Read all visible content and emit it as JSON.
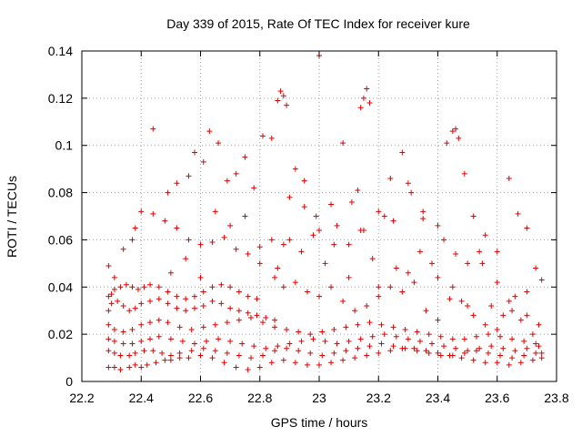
{
  "chart_data": {
    "type": "scatter",
    "title": "Day 339 of 2015, Rate Of TEC Index for receiver kure",
    "xlabel": "GPS time / hours",
    "ylabel": "ROTI / TECUs",
    "xlim": [
      22.2,
      23.8
    ],
    "ylim": [
      0,
      0.14
    ],
    "x_ticks": [
      22.2,
      22.4,
      22.6,
      22.8,
      23.0,
      23.2,
      23.4,
      23.6,
      23.8
    ],
    "x_tick_labels": [
      "22.2",
      "22.4",
      "22.6",
      "22.8",
      "23",
      "23.2",
      "23.4",
      "23.6",
      "23.8"
    ],
    "y_ticks": [
      0,
      0.02,
      0.04,
      0.06,
      0.08,
      0.1,
      0.12,
      0.14
    ],
    "y_tick_labels": [
      "0",
      "0.02",
      "0.04",
      "0.06",
      "0.08",
      "0.1",
      "0.12",
      "0.14"
    ],
    "grid": true,
    "marker": "plus",
    "color": "#e00000",
    "series": [
      {
        "x": [
          22.29,
          22.31,
          22.33,
          22.36,
          22.38,
          22.4,
          22.42,
          22.45,
          22.48,
          22.5,
          22.53,
          22.56,
          22.6,
          22.64,
          22.68,
          22.72,
          22.76,
          22.8,
          22.84,
          22.88,
          22.92,
          22.96,
          23.0,
          23.04,
          23.08,
          23.12,
          23.16,
          23.2,
          23.24,
          23.28,
          23.32,
          23.36,
          23.4,
          23.44,
          23.48,
          23.52,
          23.56,
          23.6,
          23.64,
          23.68,
          23.72,
          23.75
        ],
        "y": [
          0.006,
          0.006,
          0.005,
          0.006,
          0.007,
          0.006,
          0.007,
          0.008,
          0.009,
          0.009,
          0.01,
          0.01,
          0.011,
          0.01,
          0.008,
          0.006,
          0.005,
          0.006,
          0.008,
          0.009,
          0.008,
          0.007,
          0.007,
          0.008,
          0.009,
          0.01,
          0.011,
          0.012,
          0.013,
          0.014,
          0.014,
          0.013,
          0.012,
          0.011,
          0.01,
          0.009,
          0.008,
          0.008,
          0.007,
          0.008,
          0.009,
          0.01
        ]
      },
      {
        "x": [
          22.29,
          22.31,
          22.33,
          22.36,
          22.38,
          22.41,
          22.44,
          22.47,
          22.5,
          22.53,
          22.57,
          22.61,
          22.65,
          22.69,
          22.73,
          22.77,
          22.81,
          22.85,
          22.89,
          22.93,
          22.97,
          23.01,
          23.05,
          23.09,
          23.13,
          23.17,
          23.21,
          23.25,
          23.29,
          23.33,
          23.37,
          23.41,
          23.45,
          23.49,
          23.53,
          23.57,
          23.61,
          23.65,
          23.69,
          23.73,
          23.75
        ],
        "y": [
          0.013,
          0.012,
          0.011,
          0.011,
          0.012,
          0.013,
          0.013,
          0.012,
          0.011,
          0.012,
          0.013,
          0.014,
          0.013,
          0.012,
          0.011,
          0.01,
          0.011,
          0.013,
          0.014,
          0.013,
          0.012,
          0.011,
          0.012,
          0.013,
          0.014,
          0.015,
          0.016,
          0.015,
          0.014,
          0.013,
          0.012,
          0.011,
          0.011,
          0.012,
          0.013,
          0.012,
          0.011,
          0.01,
          0.011,
          0.012,
          0.012
        ]
      },
      {
        "x": [
          22.29,
          22.31,
          22.34,
          22.37,
          22.4,
          22.43,
          22.46,
          22.5,
          22.54,
          22.58,
          22.62,
          22.66,
          22.7,
          22.74,
          22.78,
          22.82,
          22.86,
          22.9,
          22.94,
          22.98,
          23.02,
          23.06,
          23.1,
          23.14,
          23.18,
          23.22,
          23.26,
          23.3,
          23.34,
          23.38,
          23.42,
          23.46,
          23.5,
          23.54,
          23.58,
          23.62,
          23.66,
          23.7,
          23.74
        ],
        "y": [
          0.018,
          0.017,
          0.016,
          0.016,
          0.017,
          0.018,
          0.019,
          0.018,
          0.017,
          0.016,
          0.017,
          0.018,
          0.017,
          0.016,
          0.015,
          0.014,
          0.015,
          0.016,
          0.017,
          0.018,
          0.017,
          0.016,
          0.017,
          0.018,
          0.019,
          0.02,
          0.019,
          0.018,
          0.017,
          0.016,
          0.015,
          0.014,
          0.013,
          0.014,
          0.015,
          0.014,
          0.013,
          0.014,
          0.015
        ]
      },
      {
        "x": [
          22.29,
          22.31,
          22.34,
          22.37,
          22.4,
          22.43,
          22.46,
          22.49,
          22.53,
          22.57,
          22.61,
          22.65,
          22.69,
          22.73,
          22.77,
          22.81,
          22.85,
          22.89,
          22.93,
          22.97,
          23.01,
          23.05,
          23.09,
          23.13,
          23.17,
          23.21,
          23.25,
          23.29,
          23.33,
          23.37,
          23.41,
          23.45,
          23.49,
          23.53,
          23.57,
          23.61,
          23.65,
          23.69,
          23.73
        ],
        "y": [
          0.024,
          0.022,
          0.021,
          0.022,
          0.024,
          0.025,
          0.026,
          0.025,
          0.023,
          0.022,
          0.023,
          0.024,
          0.025,
          0.026,
          0.027,
          0.025,
          0.023,
          0.022,
          0.021,
          0.02,
          0.021,
          0.022,
          0.023,
          0.024,
          0.025,
          0.024,
          0.023,
          0.022,
          0.021,
          0.02,
          0.019,
          0.018,
          0.018,
          0.019,
          0.02,
          0.019,
          0.018,
          0.017,
          0.016
        ]
      },
      {
        "x": [
          22.29,
          22.3,
          22.32,
          22.34,
          22.36,
          22.38,
          22.4,
          22.43,
          22.46,
          22.49,
          22.52,
          22.55,
          22.58,
          22.61,
          22.64,
          22.67,
          22.7,
          22.73,
          22.76,
          22.79,
          22.82,
          22.85
        ],
        "y": [
          0.03,
          0.033,
          0.034,
          0.032,
          0.03,
          0.031,
          0.033,
          0.034,
          0.035,
          0.033,
          0.031,
          0.03,
          0.031,
          0.032,
          0.034,
          0.033,
          0.031,
          0.03,
          0.029,
          0.028,
          0.027,
          0.026
        ]
      },
      {
        "x": [
          22.29,
          22.3,
          22.31,
          22.33,
          22.35,
          22.37,
          22.39,
          22.41,
          22.43,
          22.46,
          22.49,
          22.52,
          22.55,
          22.58,
          22.61,
          22.64,
          22.67,
          22.7,
          22.73,
          22.76,
          22.79
        ],
        "y": [
          0.036,
          0.037,
          0.039,
          0.04,
          0.041,
          0.04,
          0.039,
          0.04,
          0.041,
          0.04,
          0.038,
          0.036,
          0.035,
          0.036,
          0.038,
          0.04,
          0.041,
          0.04,
          0.038,
          0.036,
          0.035
        ]
      },
      {
        "x": [
          22.29,
          22.31,
          22.34,
          22.37,
          22.4,
          22.44,
          22.48,
          22.52,
          22.56,
          22.6,
          22.64,
          22.68,
          22.72,
          22.76,
          22.8,
          22.84,
          22.88
        ],
        "y": [
          0.049,
          0.044,
          0.056,
          0.06,
          0.072,
          0.071,
          0.068,
          0.065,
          0.06,
          0.058,
          0.059,
          0.061,
          0.056,
          0.054,
          0.057,
          0.06,
          0.058
        ]
      },
      {
        "x": [
          22.38,
          22.44,
          22.49,
          22.52,
          22.56,
          22.58,
          22.61,
          22.63,
          22.66,
          22.69,
          22.72,
          22.75,
          22.78,
          22.81,
          22.84,
          22.86,
          22.87,
          22.88,
          22.89,
          22.92,
          22.95,
          22.99,
          23.0
        ],
        "y": [
          0.065,
          0.107,
          0.08,
          0.084,
          0.087,
          0.097,
          0.093,
          0.106,
          0.101,
          0.085,
          0.088,
          0.095,
          0.082,
          0.104,
          0.103,
          0.119,
          0.123,
          0.121,
          0.117,
          0.09,
          0.085,
          0.07,
          0.138
        ]
      },
      {
        "x": [
          23.04,
          23.08,
          23.11,
          23.13,
          23.14,
          23.15,
          23.16,
          23.17,
          23.2,
          23.24,
          23.28,
          23.31,
          23.35,
          23.4,
          23.43,
          23.45,
          23.46,
          23.47,
          23.49,
          23.52,
          23.56,
          23.6,
          23.64,
          23.67,
          23.7,
          23.73,
          23.75
        ],
        "y": [
          0.075,
          0.101,
          0.076,
          0.081,
          0.116,
          0.12,
          0.124,
          0.118,
          0.072,
          0.086,
          0.097,
          0.08,
          0.069,
          0.066,
          0.101,
          0.106,
          0.107,
          0.103,
          0.088,
          0.07,
          0.062,
          0.055,
          0.086,
          0.071,
          0.065,
          0.048,
          0.043
        ]
      },
      {
        "x": [
          22.86,
          22.9,
          22.94,
          22.98,
          23.02,
          23.06,
          23.1,
          23.14,
          23.18,
          23.22,
          23.26,
          23.3,
          23.34,
          23.38,
          23.42,
          23.46,
          23.5,
          23.54,
          23.58,
          23.62,
          23.66,
          23.7,
          23.74
        ],
        "y": [
          0.048,
          0.06,
          0.055,
          0.062,
          0.05,
          0.066,
          0.058,
          0.064,
          0.052,
          0.07,
          0.048,
          0.046,
          0.055,
          0.05,
          0.06,
          0.054,
          0.05,
          0.055,
          0.032,
          0.028,
          0.036,
          0.038,
          0.024
        ]
      },
      {
        "x": [
          22.88,
          22.92,
          22.96,
          23.0,
          23.04,
          23.08,
          23.12,
          23.16,
          23.2,
          23.24,
          23.28,
          23.32,
          23.36,
          23.4,
          23.44,
          23.48,
          23.52,
          23.56,
          23.6,
          23.64,
          23.68,
          23.72
        ],
        "y": [
          0.04,
          0.042,
          0.038,
          0.036,
          0.04,
          0.034,
          0.03,
          0.032,
          0.036,
          0.04,
          0.038,
          0.042,
          0.03,
          0.026,
          0.035,
          0.034,
          0.028,
          0.024,
          0.022,
          0.034,
          0.026,
          0.02
        ]
      },
      {
        "x": [
          22.5,
          22.55,
          22.6,
          22.65,
          22.7,
          22.75,
          22.8,
          22.85,
          22.9,
          22.95,
          23.0,
          23.05,
          23.1,
          23.15,
          23.2,
          23.25,
          23.3,
          23.35,
          23.4,
          23.45,
          23.5,
          23.55,
          23.6,
          23.65,
          23.7
        ],
        "y": [
          0.046,
          0.052,
          0.044,
          0.072,
          0.066,
          0.07,
          0.05,
          0.044,
          0.078,
          0.074,
          0.064,
          0.058,
          0.044,
          0.064,
          0.04,
          0.068,
          0.084,
          0.072,
          0.044,
          0.04,
          0.032,
          0.05,
          0.042,
          0.03,
          0.028
        ]
      }
    ]
  }
}
